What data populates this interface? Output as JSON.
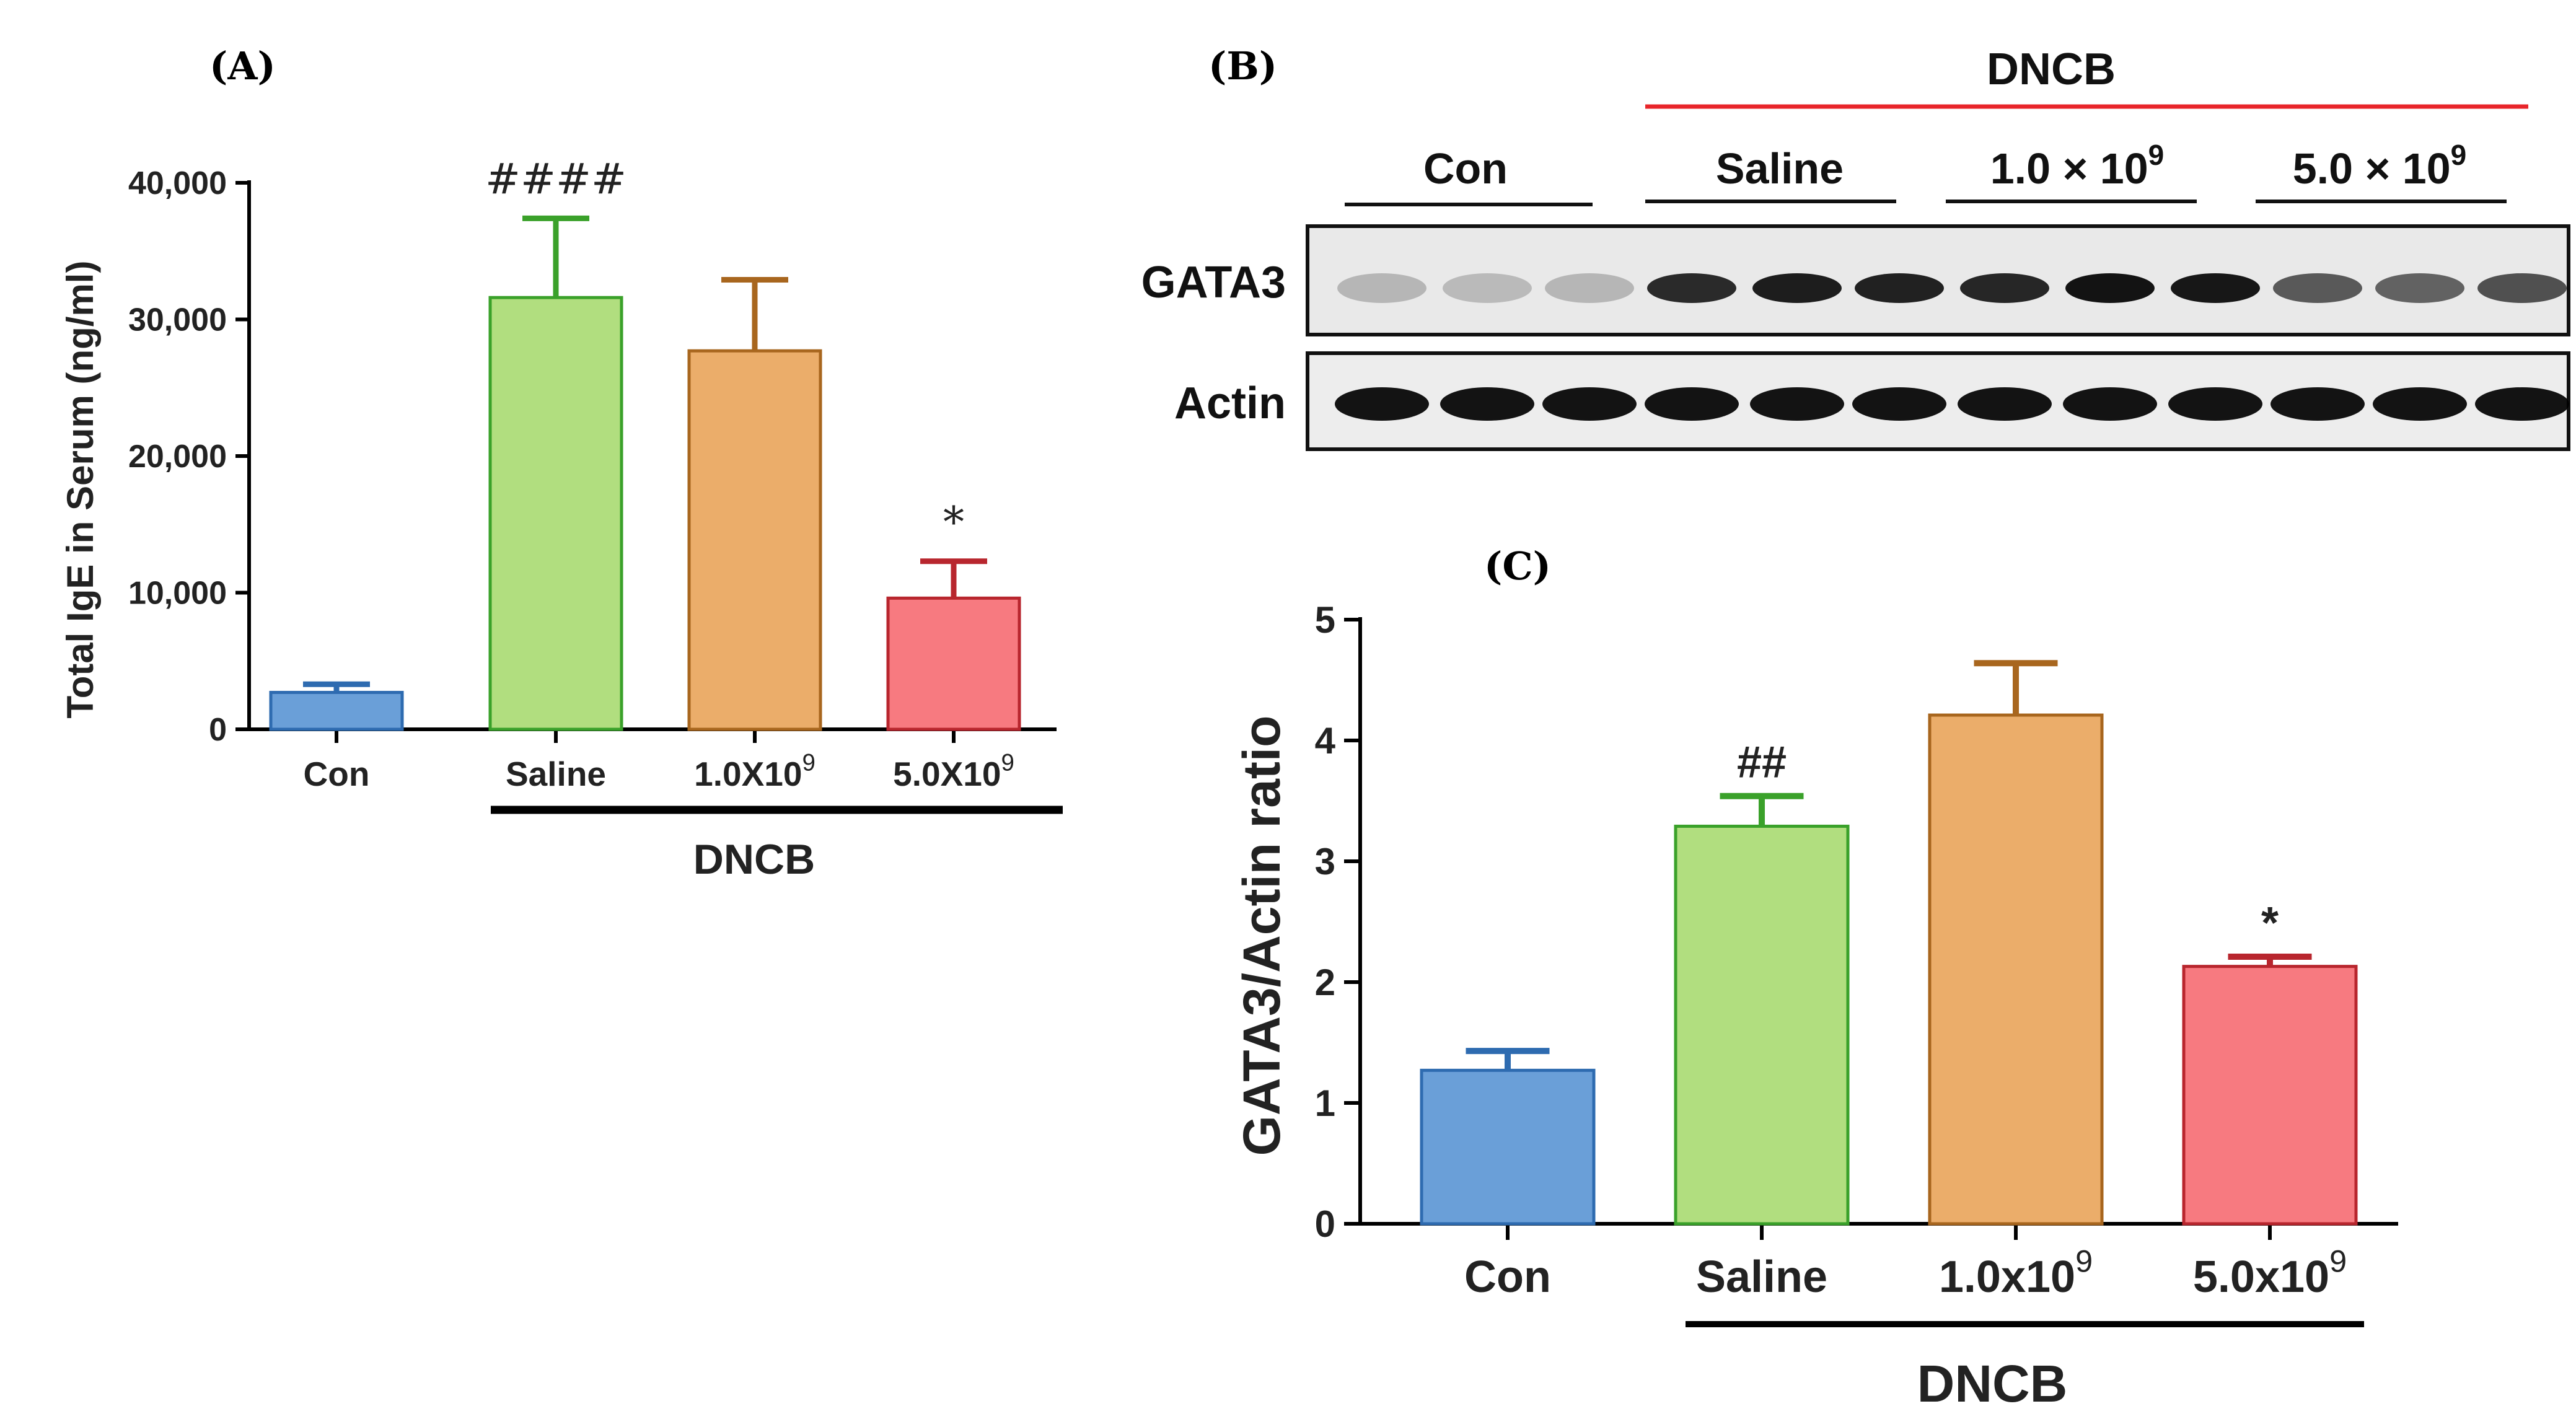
{
  "panels": {
    "a": "(A)",
    "b": "(B)",
    "c": "(C)"
  },
  "colors": {
    "con": "#6a9fd8",
    "con_edge": "#2e6bb0",
    "saline": "#b1de7f",
    "saline_edge": "#3aa12a",
    "low": "#ebad6a",
    "low_edge": "#a8661e",
    "high": "#f77a80",
    "high_edge": "#b8262e",
    "dncb_line": "#e8252a"
  },
  "blot": {
    "dncb_label": "DNCB",
    "groups": [
      "Con",
      "Saline",
      "1.0 × 10",
      "5.0 × 10"
    ],
    "group_exponents": [
      "",
      "",
      "9",
      "9"
    ],
    "rows": [
      "GATA3",
      "Actin"
    ]
  },
  "chart_data": [
    {
      "type": "bar",
      "title": "",
      "ylabel": "Total IgE in Serum (ng/ml)",
      "categories": [
        "Con",
        "Saline",
        "1.0X10",
        "5.0X10"
      ],
      "category_exponents": [
        "",
        "",
        "9",
        "9"
      ],
      "values": [
        2700,
        31600,
        27700,
        9600
      ],
      "errors": [
        600,
        5800,
        5200,
        2700
      ],
      "annotations": [
        "",
        "####",
        "",
        "*"
      ],
      "ylim": [
        0,
        40000
      ],
      "yticks": [
        "0",
        "10,000",
        "20,000",
        "30,000",
        "40,000"
      ],
      "group_label": "DNCB",
      "grid": false
    },
    {
      "type": "bar",
      "title": "",
      "ylabel": "GATA3/Actin ratio",
      "categories": [
        "Con",
        "Saline",
        "1.0x10",
        "5.0x10"
      ],
      "category_exponents": [
        "",
        "",
        "9",
        "9"
      ],
      "values": [
        1.27,
        3.29,
        4.21,
        2.13
      ],
      "errors": [
        0.16,
        0.25,
        0.43,
        0.08
      ],
      "annotations": [
        "",
        "##",
        "",
        "*"
      ],
      "ylim": [
        0,
        5
      ],
      "yticks": [
        "0",
        "1",
        "2",
        "3",
        "4",
        "5"
      ],
      "group_label": "DNCB",
      "grid": false
    }
  ]
}
